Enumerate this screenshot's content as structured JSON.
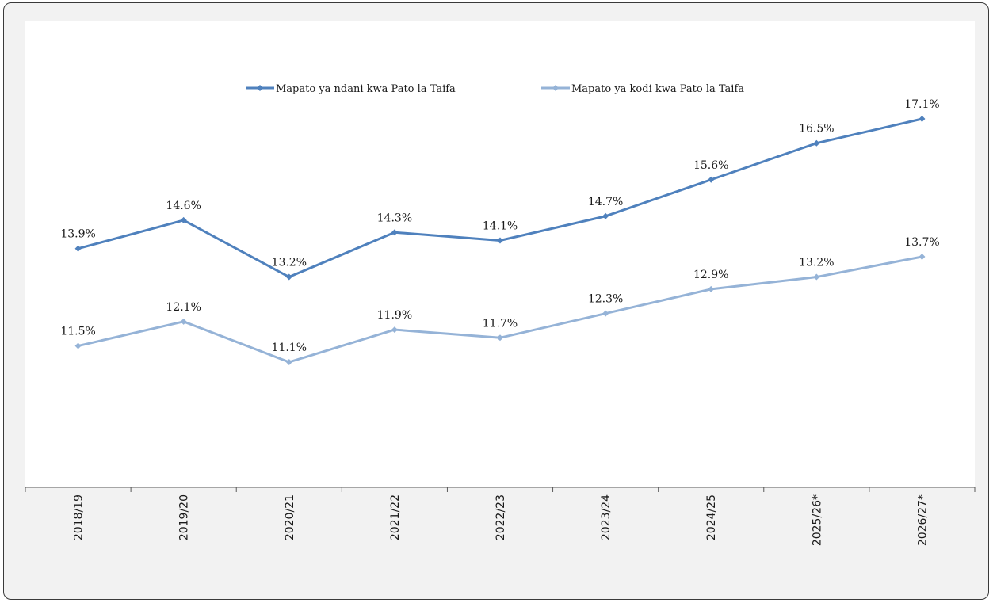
{
  "chart_data": {
    "type": "line",
    "categories": [
      "2018/19",
      "2019/20",
      "2020/21",
      "2021/22",
      "2022/23",
      "2023/24",
      "2024/25",
      "2025/26*",
      "2026/27*"
    ],
    "series": [
      {
        "name": "Mapato ya ndani kwa Pato la Taifa",
        "values": [
          13.9,
          14.6,
          13.2,
          14.3,
          14.1,
          14.7,
          15.6,
          16.5,
          17.1
        ],
        "labels": [
          "13.9%",
          "14.6%",
          "13.2%",
          "14.3%",
          "14.1%",
          "14.7%",
          "15.6%",
          "16.5%",
          "17.1%"
        ],
        "color": "#4f81bd"
      },
      {
        "name": "Mapato ya kodi kwa Pato la Taifa",
        "values": [
          11.5,
          12.1,
          11.1,
          11.9,
          11.7,
          12.3,
          12.9,
          13.2,
          13.7
        ],
        "labels": [
          "11.5%",
          "12.1%",
          "11.1%",
          "11.9%",
          "11.7%",
          "12.3%",
          "12.9%",
          "13.2%",
          "13.7%"
        ],
        "color": "#95b3d7"
      }
    ],
    "legend_position": "top-center",
    "grid": false,
    "marker": "diamond",
    "xlabel": "",
    "ylabel": ""
  }
}
